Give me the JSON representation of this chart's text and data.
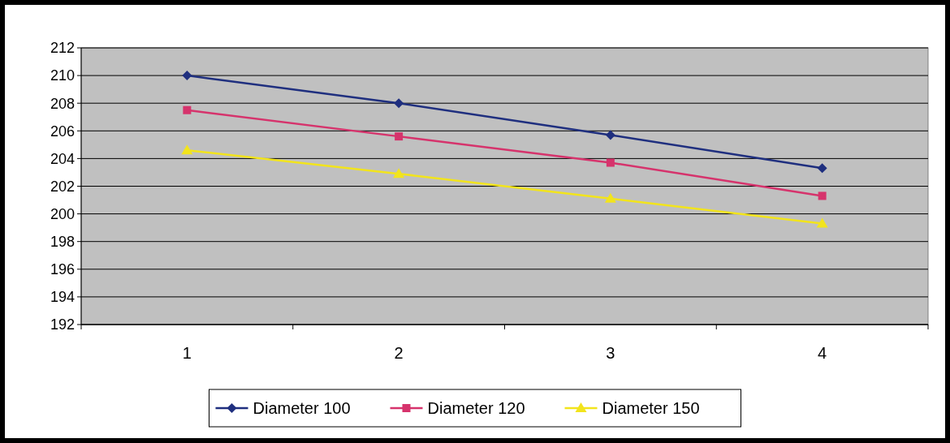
{
  "chart_data": {
    "type": "line",
    "categories": [
      "1",
      "2",
      "3",
      "4"
    ],
    "series": [
      {
        "name": "Diameter 100",
        "color": "#1f2f7f",
        "marker": "diamond",
        "values": [
          210,
          208,
          205.7,
          203.3
        ]
      },
      {
        "name": "Diameter 120",
        "color": "#d6336c",
        "marker": "square",
        "values": [
          207.5,
          205.6,
          203.7,
          201.3
        ]
      },
      {
        "name": "Diameter 150",
        "color": "#f2e41c",
        "marker": "triangle",
        "values": [
          204.6,
          202.9,
          201.1,
          199.3
        ]
      }
    ],
    "ylim": [
      192,
      212
    ],
    "yticks": [
      192,
      194,
      196,
      198,
      200,
      202,
      204,
      206,
      208,
      210,
      212
    ],
    "grid": "y",
    "legend": "bottom"
  }
}
